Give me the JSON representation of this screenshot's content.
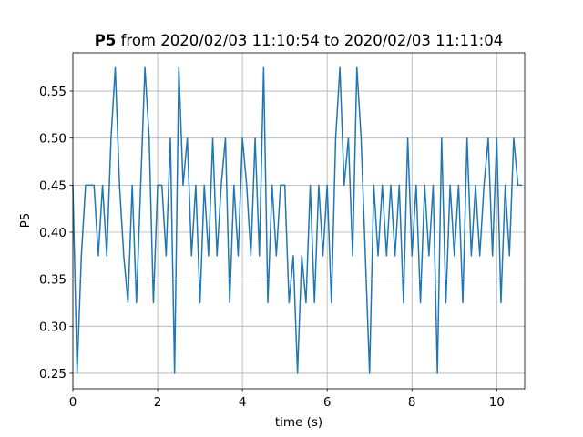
{
  "chart_data": {
    "type": "line",
    "title_bold": "P5",
    "title": "from 2020/02/03 11:10:54 to 2020/02/03 11:11:04",
    "xlabel": "time (s)",
    "ylabel": "P5",
    "color": "#1f77b4",
    "grid": true,
    "xlim": [
      0,
      10.66
    ],
    "ylim": [
      0.2335,
      0.5907
    ],
    "xticks": [
      0,
      2,
      4,
      6,
      8,
      10
    ],
    "yticks": [
      0.25,
      {
        "value": 0.3,
        "label": "0.30"
      },
      0.35,
      {
        "value": 0.4,
        "label": "0.40"
      },
      0.45,
      {
        "value": 0.5,
        "label": "0.50"
      },
      0.55
    ],
    "x": [
      0.0,
      0.1,
      0.2,
      0.3,
      0.4,
      0.5,
      0.6,
      0.7,
      0.8,
      0.9,
      1.0,
      1.1,
      1.2,
      1.3,
      1.4,
      1.5,
      1.6,
      1.7,
      1.8,
      1.9,
      2.0,
      2.1,
      2.2,
      2.3,
      2.4,
      2.5,
      2.6,
      2.7,
      2.8,
      2.9,
      3.0,
      3.1,
      3.2,
      3.3,
      3.4,
      3.5,
      3.6,
      3.7,
      3.8,
      3.9,
      4.0,
      4.1,
      4.2,
      4.3,
      4.4,
      4.5,
      4.6,
      4.7,
      4.8,
      4.9,
      5.0,
      5.1,
      5.2,
      5.3,
      5.4,
      5.5,
      5.6,
      5.7,
      5.8,
      5.9,
      6.0,
      6.1,
      6.2,
      6.3,
      6.4,
      6.5,
      6.6,
      6.7,
      6.8,
      6.9,
      7.0,
      7.1,
      7.2,
      7.3,
      7.4,
      7.5,
      7.6,
      7.7,
      7.8,
      7.9,
      8.0,
      8.1,
      8.2,
      8.3,
      8.4,
      8.5,
      8.6,
      8.7,
      8.8,
      8.9,
      9.0,
      9.1,
      9.2,
      9.3,
      9.4,
      9.5,
      9.6,
      9.7,
      9.8,
      9.9,
      10.0,
      10.1,
      10.2,
      10.3,
      10.4,
      10.5,
      10.6
    ],
    "values": [
      0.45,
      0.25,
      0.375,
      0.45,
      0.45,
      0.45,
      0.375,
      0.45,
      0.375,
      0.5,
      0.575,
      0.45,
      0.375,
      0.325,
      0.45,
      0.325,
      0.45,
      0.575,
      0.5,
      0.325,
      0.45,
      0.45,
      0.375,
      0.5,
      0.25,
      0.575,
      0.45,
      0.5,
      0.375,
      0.45,
      0.325,
      0.45,
      0.375,
      0.5,
      0.375,
      0.45,
      0.5,
      0.325,
      0.45,
      0.375,
      0.5,
      0.45,
      0.375,
      0.5,
      0.375,
      0.575,
      0.325,
      0.45,
      0.375,
      0.45,
      0.45,
      0.325,
      0.375,
      0.25,
      0.375,
      0.325,
      0.45,
      0.325,
      0.45,
      0.375,
      0.45,
      0.325,
      0.5,
      0.575,
      0.45,
      0.5,
      0.375,
      0.575,
      0.5,
      0.375,
      0.25,
      0.45,
      0.375,
      0.45,
      0.375,
      0.45,
      0.375,
      0.45,
      0.325,
      0.5,
      0.375,
      0.45,
      0.325,
      0.45,
      0.375,
      0.45,
      0.25,
      0.5,
      0.325,
      0.45,
      0.375,
      0.45,
      0.325,
      0.5,
      0.375,
      0.45,
      0.375,
      0.45,
      0.5,
      0.375,
      0.5,
      0.325,
      0.45,
      0.375,
      0.5,
      0.45,
      0.45
    ]
  }
}
